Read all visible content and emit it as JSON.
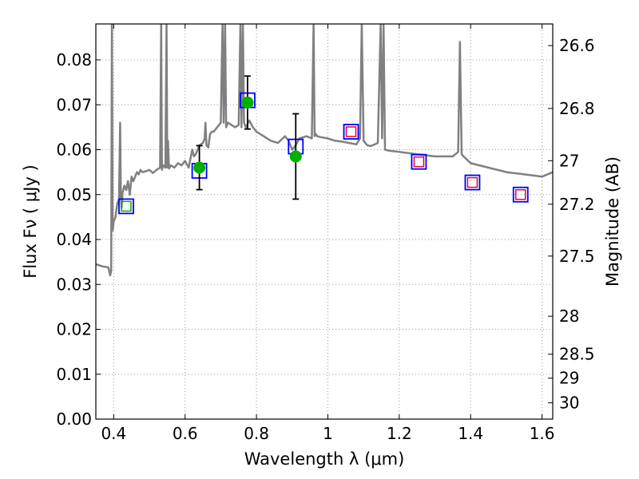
{
  "chart_data": {
    "type": "scatter",
    "xlabel": "Wavelength  λ (μm)",
    "ylabel": "Flux  Fν  ( μJy )",
    "ylabel_right": "Magnitude (AB)",
    "xlim": [
      0.35,
      1.63
    ],
    "ylim": [
      0.0,
      0.088
    ],
    "grid": true,
    "x_ticks": [
      0.4,
      0.6,
      0.8,
      1.0,
      1.2,
      1.4,
      1.6
    ],
    "x_tick_labels": [
      "0.4",
      "0.6",
      "0.8",
      "1",
      "1.2",
      "1.4",
      "1.6"
    ],
    "y_ticks": [
      0.0,
      0.01,
      0.02,
      0.03,
      0.04,
      0.05,
      0.06,
      0.07,
      0.08
    ],
    "y_tick_labels": [
      "0.00",
      "0.01",
      "0.02",
      "0.03",
      "0.04",
      "0.05",
      "0.06",
      "0.07",
      "0.08"
    ],
    "mag_ticks": [
      26.6,
      26.8,
      27,
      27.2,
      27.5,
      28,
      28.5,
      29,
      30
    ],
    "mag_tick_labels": [
      "26.6",
      "26.8",
      "27",
      "27.2",
      "27.5",
      "28",
      "28.5",
      "29",
      "30"
    ],
    "colors": {
      "sed": "#808080",
      "model_box": "#0000ff",
      "observed": "#00b000",
      "upper_box": "#e8003c",
      "errorbar": "#000000",
      "grid": "#999999"
    },
    "series": [
      {
        "kind": "model_boxes",
        "points": [
          {
            "x": 0.435,
            "y": 0.0474
          },
          {
            "x": 0.64,
            "y": 0.0553
          },
          {
            "x": 0.775,
            "y": 0.071
          },
          {
            "x": 0.91,
            "y": 0.0607
          },
          {
            "x": 1.065,
            "y": 0.064
          },
          {
            "x": 1.255,
            "y": 0.0573
          },
          {
            "x": 1.405,
            "y": 0.0527
          },
          {
            "x": 1.54,
            "y": 0.05
          }
        ]
      },
      {
        "kind": "observed",
        "points": [
          {
            "x": 0.435,
            "y": 0.0474,
            "yerr": 0.0
          },
          {
            "x": 0.64,
            "y": 0.056,
            "yerr": 0.0049
          },
          {
            "x": 0.775,
            "y": 0.0705,
            "yerr": 0.0059
          },
          {
            "x": 0.91,
            "y": 0.0585,
            "yerr": 0.0095
          }
        ]
      },
      {
        "kind": "upper_limit_boxes",
        "points": [
          {
            "x": 1.065,
            "y": 0.064
          },
          {
            "x": 1.255,
            "y": 0.0573
          },
          {
            "x": 1.405,
            "y": 0.0527
          },
          {
            "x": 1.54,
            "y": 0.05
          }
        ]
      },
      {
        "kind": "sed",
        "x": [
          0.35,
          0.37,
          0.385,
          0.39,
          0.393,
          0.395,
          0.397,
          0.4,
          0.405,
          0.41,
          0.415,
          0.418,
          0.42,
          0.422,
          0.425,
          0.43,
          0.435,
          0.44,
          0.445,
          0.45,
          0.455,
          0.46,
          0.465,
          0.47,
          0.475,
          0.48,
          0.49,
          0.5,
          0.51,
          0.52,
          0.53,
          0.533,
          0.535,
          0.537,
          0.54,
          0.545,
          0.548,
          0.55,
          0.552,
          0.555,
          0.56,
          0.57,
          0.58,
          0.59,
          0.6,
          0.61,
          0.62,
          0.625,
          0.63,
          0.635,
          0.64,
          0.65,
          0.655,
          0.657,
          0.66,
          0.665,
          0.67,
          0.675,
          0.68,
          0.69,
          0.7,
          0.705,
          0.708,
          0.712,
          0.715,
          0.72,
          0.73,
          0.74,
          0.75,
          0.755,
          0.758,
          0.762,
          0.765,
          0.77,
          0.78,
          0.79,
          0.8,
          0.82,
          0.84,
          0.86,
          0.88,
          0.89,
          0.9,
          0.91,
          0.92,
          0.94,
          0.955,
          0.96,
          0.963,
          0.966,
          0.97,
          0.98,
          1.0,
          1.02,
          1.04,
          1.06,
          1.08,
          1.09,
          1.095,
          1.1,
          1.105,
          1.11,
          1.12,
          1.14,
          1.148,
          1.152,
          1.156,
          1.16,
          1.17,
          1.2,
          1.25,
          1.3,
          1.35,
          1.365,
          1.37,
          1.375,
          1.38,
          1.4,
          1.45,
          1.5,
          1.55,
          1.6,
          1.63
        ],
        "y": [
          0.0345,
          0.034,
          0.0338,
          0.032,
          0.033,
          0.088,
          0.042,
          0.044,
          0.045,
          0.048,
          0.049,
          0.066,
          0.05,
          0.047,
          0.0505,
          0.052,
          0.051,
          0.053,
          0.05,
          0.054,
          0.053,
          0.054,
          0.055,
          0.0545,
          0.0555,
          0.055,
          0.0552,
          0.0555,
          0.0548,
          0.0555,
          0.056,
          0.088,
          0.0555,
          0.056,
          0.0565,
          0.056,
          0.088,
          0.056,
          0.062,
          0.0558,
          0.0565,
          0.056,
          0.057,
          0.0565,
          0.0575,
          0.056,
          0.06,
          0.0585,
          0.059,
          0.06,
          0.061,
          0.0615,
          0.0625,
          0.066,
          0.061,
          0.0605,
          0.0635,
          0.064,
          0.064,
          0.065,
          0.066,
          0.088,
          0.066,
          0.088,
          0.065,
          0.066,
          0.0655,
          0.065,
          0.0655,
          0.088,
          0.065,
          0.088,
          0.066,
          0.065,
          0.0665,
          0.065,
          0.064,
          0.063,
          0.062,
          0.0615,
          0.063,
          0.062,
          0.06,
          0.061,
          0.0625,
          0.063,
          0.0625,
          0.088,
          0.063,
          0.0635,
          0.063,
          0.0628,
          0.0625,
          0.062,
          0.0618,
          0.0615,
          0.0612,
          0.0625,
          0.088,
          0.062,
          0.0615,
          0.061,
          0.0608,
          0.0615,
          0.088,
          0.0625,
          0.088,
          0.06,
          0.0598,
          0.0595,
          0.059,
          0.0585,
          0.0585,
          0.0595,
          0.084,
          0.059,
          0.0585,
          0.057,
          0.056,
          0.055,
          0.0545,
          0.054,
          0.055
        ]
      }
    ]
  }
}
